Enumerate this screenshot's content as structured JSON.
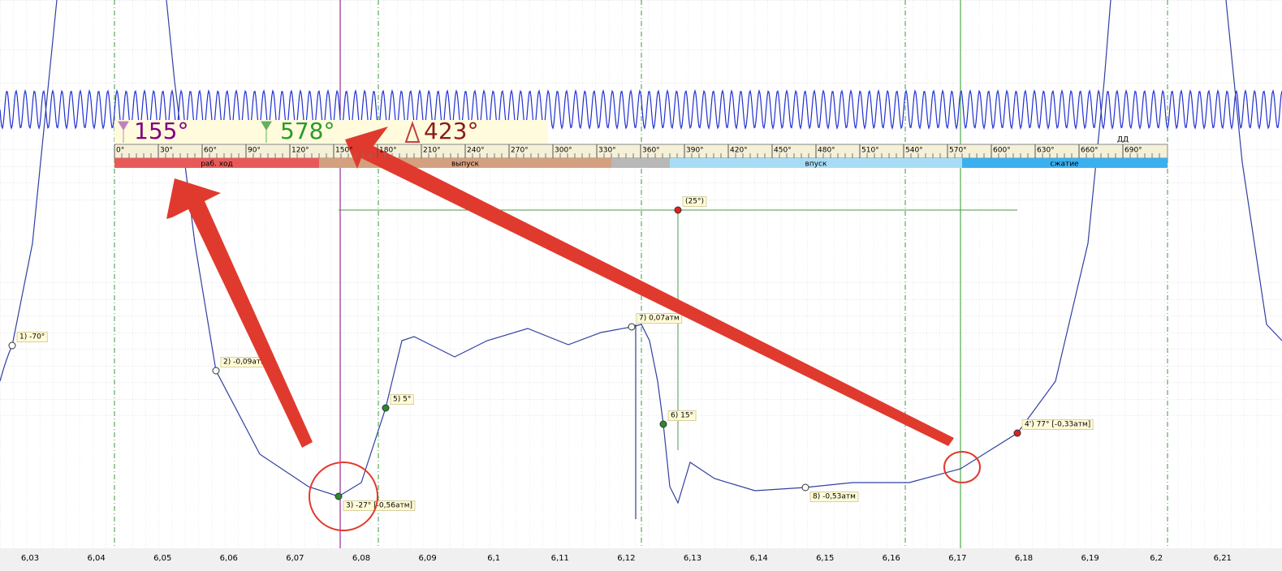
{
  "cursors": {
    "c1": "155°",
    "c2": "578°",
    "delta": "423°"
  },
  "toolbar": "ДД",
  "degree_scale": [
    "0°",
    "30°",
    "60°",
    "90°",
    "120°",
    "150°",
    "180°",
    "210°",
    "240°",
    "270°",
    "300°",
    "330°",
    "360°",
    "390°",
    "420°",
    "450°",
    "480°",
    "510°",
    "540°",
    "570°",
    "600°",
    "630°",
    "660°",
    "690°"
  ],
  "phases": [
    "раб. ход",
    "выпуск",
    "впуск",
    "сжатие"
  ],
  "markers": [
    "1)  -70°",
    "2)  -0,09атм",
    "3)  -27° [-0,56атм]",
    "4')  77° [-0,33атм]",
    "5)  5°",
    "6)  15°",
    "7)  0,07атм",
    "8)  -0,53атм",
    "(25°)"
  ],
  "x_axis": [
    "6,03",
    "6,04",
    "6,05",
    "6,06",
    "6,07",
    "6,08",
    "6,09",
    "6,1",
    "6,11",
    "6,12",
    "6,13",
    "6,14",
    "6,15",
    "6,16",
    "6,17",
    "6,18",
    "6,19",
    "6,2",
    "6,21"
  ]
}
